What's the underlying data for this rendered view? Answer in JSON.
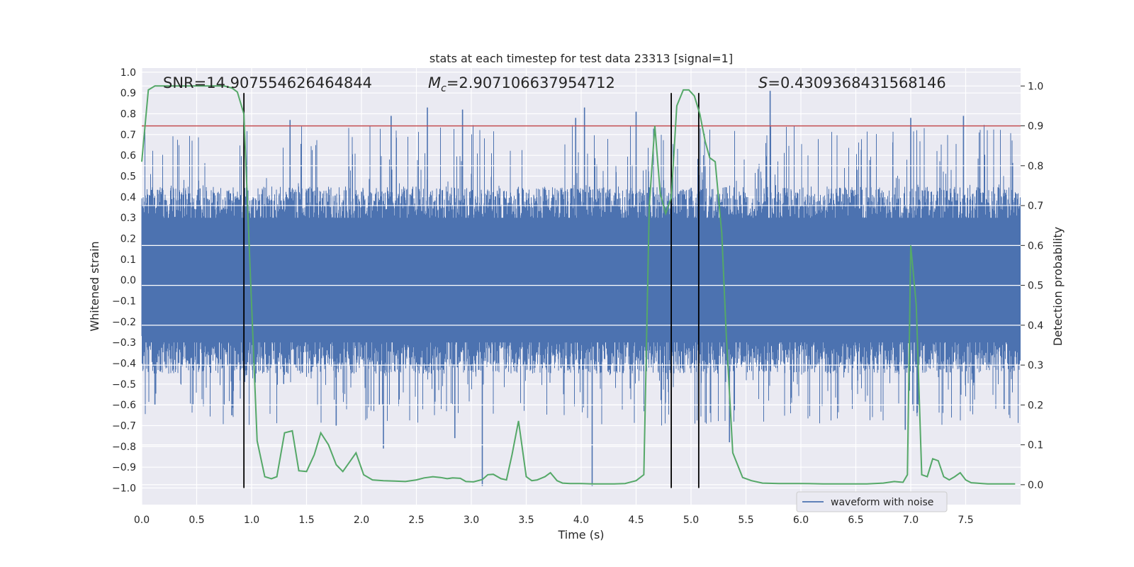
{
  "chart_data": {
    "type": "line",
    "title": "stats at each timestep for test data 23313 [signal=1]",
    "xlabel": "Time (s)",
    "ylabel": "Whitened strain",
    "ylabel_right": "Detection probability",
    "xlim": [
      0.0,
      8.0
    ],
    "ylim": [
      -1.08,
      1.02
    ],
    "ylim_right": [
      -0.05,
      1.045
    ],
    "x_ticks": [
      0.0,
      0.5,
      1.0,
      1.5,
      2.0,
      2.5,
      3.0,
      3.5,
      4.0,
      4.5,
      5.0,
      5.5,
      6.0,
      6.5,
      7.0,
      7.5
    ],
    "x_tick_labels": [
      "0.0",
      "0.5",
      "1.0",
      "1.5",
      "2.0",
      "2.5",
      "3.0",
      "3.5",
      "4.0",
      "4.5",
      "5.0",
      "5.5",
      "6.0",
      "6.5",
      "7.0",
      "7.5"
    ],
    "y_ticks": [
      1.0,
      0.9,
      0.8,
      0.7,
      0.6,
      0.5,
      0.4,
      0.3,
      0.2,
      0.1,
      0.0,
      -0.1,
      -0.2,
      -0.3,
      -0.4,
      -0.5,
      -0.6,
      -0.7,
      -0.8,
      -0.9,
      -1.0
    ],
    "y_tick_labels": [
      "1.0",
      "0.9",
      "0.8",
      "0.7",
      "0.6",
      "0.5",
      "0.4",
      "0.3",
      "0.2",
      "0.1",
      "0.0",
      "−0.1",
      "−0.2",
      "−0.3",
      "−0.4",
      "−0.5",
      "−0.6",
      "−0.7",
      "−0.8",
      "−0.9",
      "−1.0"
    ],
    "y2_ticks": [
      1.0,
      0.9,
      0.8,
      0.7,
      0.6,
      0.5,
      0.4,
      0.3,
      0.2,
      0.1,
      0.0
    ],
    "y2_tick_labels": [
      "1.0",
      "0.9",
      "0.8",
      "0.7",
      "0.6",
      "0.5",
      "0.4",
      "0.3",
      "0.2",
      "0.1",
      "0.0"
    ],
    "annotations": {
      "snr": "SNR=14.907554626464844",
      "mc_prefix": "M",
      "mc_sub": "c",
      "mc_value": "=2.907106637954712",
      "s_prefix": "S",
      "s_value": "=0.4309368431568146"
    },
    "threshold": {
      "value": 0.9,
      "axis": "right",
      "color": "#c44e52"
    },
    "vertical_lines": [
      0.93,
      4.82,
      5.07
    ],
    "vlines_range": [
      -1.0,
      0.9
    ],
    "legend": {
      "label": "waveform with noise",
      "location": "lower-right"
    },
    "series": [
      {
        "name": "waveform with noise",
        "axis": "left",
        "color": "#4c72b0",
        "style": "noise",
        "envelope_typical": 0.45,
        "spikes": [
          {
            "x": 3.1,
            "y": -0.99
          },
          {
            "x": 4.1,
            "y": -0.99
          },
          {
            "x": 5.72,
            "y": 0.91
          },
          {
            "x": 0.82,
            "y": -0.65
          },
          {
            "x": 2.2,
            "y": -0.81
          },
          {
            "x": 2.85,
            "y": -0.76
          },
          {
            "x": 5.35,
            "y": -0.78
          },
          {
            "x": 6.95,
            "y": -0.72
          },
          {
            "x": 4.03,
            "y": 0.83
          },
          {
            "x": 3.95,
            "y": 0.78
          },
          {
            "x": 7.48,
            "y": 0.79
          },
          {
            "x": 4.5,
            "y": 0.81
          },
          {
            "x": 2.27,
            "y": 0.79
          },
          {
            "x": 2.6,
            "y": 0.83
          },
          {
            "x": 2.92,
            "y": 0.82
          },
          {
            "x": 1.35,
            "y": 0.77
          },
          {
            "x": 7.0,
            "y": 0.78
          },
          {
            "x": 7.85,
            "y": -0.62
          },
          {
            "x": 1.77,
            "y": -0.7
          },
          {
            "x": 0.12,
            "y": -0.6
          }
        ]
      },
      {
        "name": "detection probability",
        "axis": "right",
        "color": "#55a868",
        "x": [
          0.0,
          0.06,
          0.12,
          0.18,
          0.25,
          0.4,
          0.6,
          0.75,
          0.82,
          0.87,
          0.93,
          1.0,
          1.05,
          1.12,
          1.18,
          1.23,
          1.3,
          1.37,
          1.43,
          1.5,
          1.57,
          1.63,
          1.7,
          1.77,
          1.83,
          1.9,
          1.95,
          2.02,
          2.1,
          2.2,
          2.3,
          2.4,
          2.5,
          2.57,
          2.65,
          2.72,
          2.78,
          2.83,
          2.9,
          2.95,
          3.02,
          3.1,
          3.15,
          3.2,
          3.27,
          3.32,
          3.37,
          3.43,
          3.5,
          3.55,
          3.6,
          3.67,
          3.72,
          3.78,
          3.83,
          3.9,
          4.0,
          4.1,
          4.2,
          4.3,
          4.4,
          4.5,
          4.57,
          4.62,
          4.67,
          4.72,
          4.77,
          4.82,
          4.87,
          4.93,
          4.98,
          5.03,
          5.08,
          5.13,
          5.17,
          5.22,
          5.28,
          5.32,
          5.38,
          5.47,
          5.55,
          5.65,
          5.8,
          6.0,
          6.2,
          6.4,
          6.6,
          6.75,
          6.85,
          6.93,
          6.97,
          7.0,
          7.05,
          7.1,
          7.15,
          7.2,
          7.25,
          7.3,
          7.35,
          7.4,
          7.45,
          7.5,
          7.55,
          7.6,
          7.65,
          7.7,
          7.8,
          7.95
        ],
        "y": [
          0.81,
          0.99,
          1.0,
          1.0,
          1.0,
          1.0,
          1.0,
          1.0,
          0.995,
          0.985,
          0.93,
          0.45,
          0.11,
          0.02,
          0.015,
          0.02,
          0.13,
          0.135,
          0.035,
          0.033,
          0.075,
          0.13,
          0.1,
          0.05,
          0.033,
          0.06,
          0.08,
          0.025,
          0.012,
          0.01,
          0.009,
          0.008,
          0.012,
          0.017,
          0.02,
          0.018,
          0.015,
          0.017,
          0.016,
          0.008,
          0.007,
          0.013,
          0.025,
          0.026,
          0.015,
          0.012,
          0.075,
          0.16,
          0.02,
          0.01,
          0.012,
          0.02,
          0.03,
          0.01,
          0.004,
          0.003,
          0.003,
          0.002,
          0.002,
          0.002,
          0.003,
          0.01,
          0.025,
          0.7,
          0.9,
          0.73,
          0.68,
          0.72,
          0.95,
          0.99,
          0.99,
          0.975,
          0.93,
          0.86,
          0.82,
          0.81,
          0.63,
          0.38,
          0.08,
          0.018,
          0.01,
          0.004,
          0.003,
          0.003,
          0.002,
          0.002,
          0.002,
          0.004,
          0.008,
          0.006,
          0.025,
          0.6,
          0.45,
          0.025,
          0.02,
          0.065,
          0.06,
          0.02,
          0.012,
          0.02,
          0.03,
          0.012,
          0.005,
          0.004,
          0.003,
          0.002,
          0.002,
          0.002
        ]
      }
    ]
  }
}
